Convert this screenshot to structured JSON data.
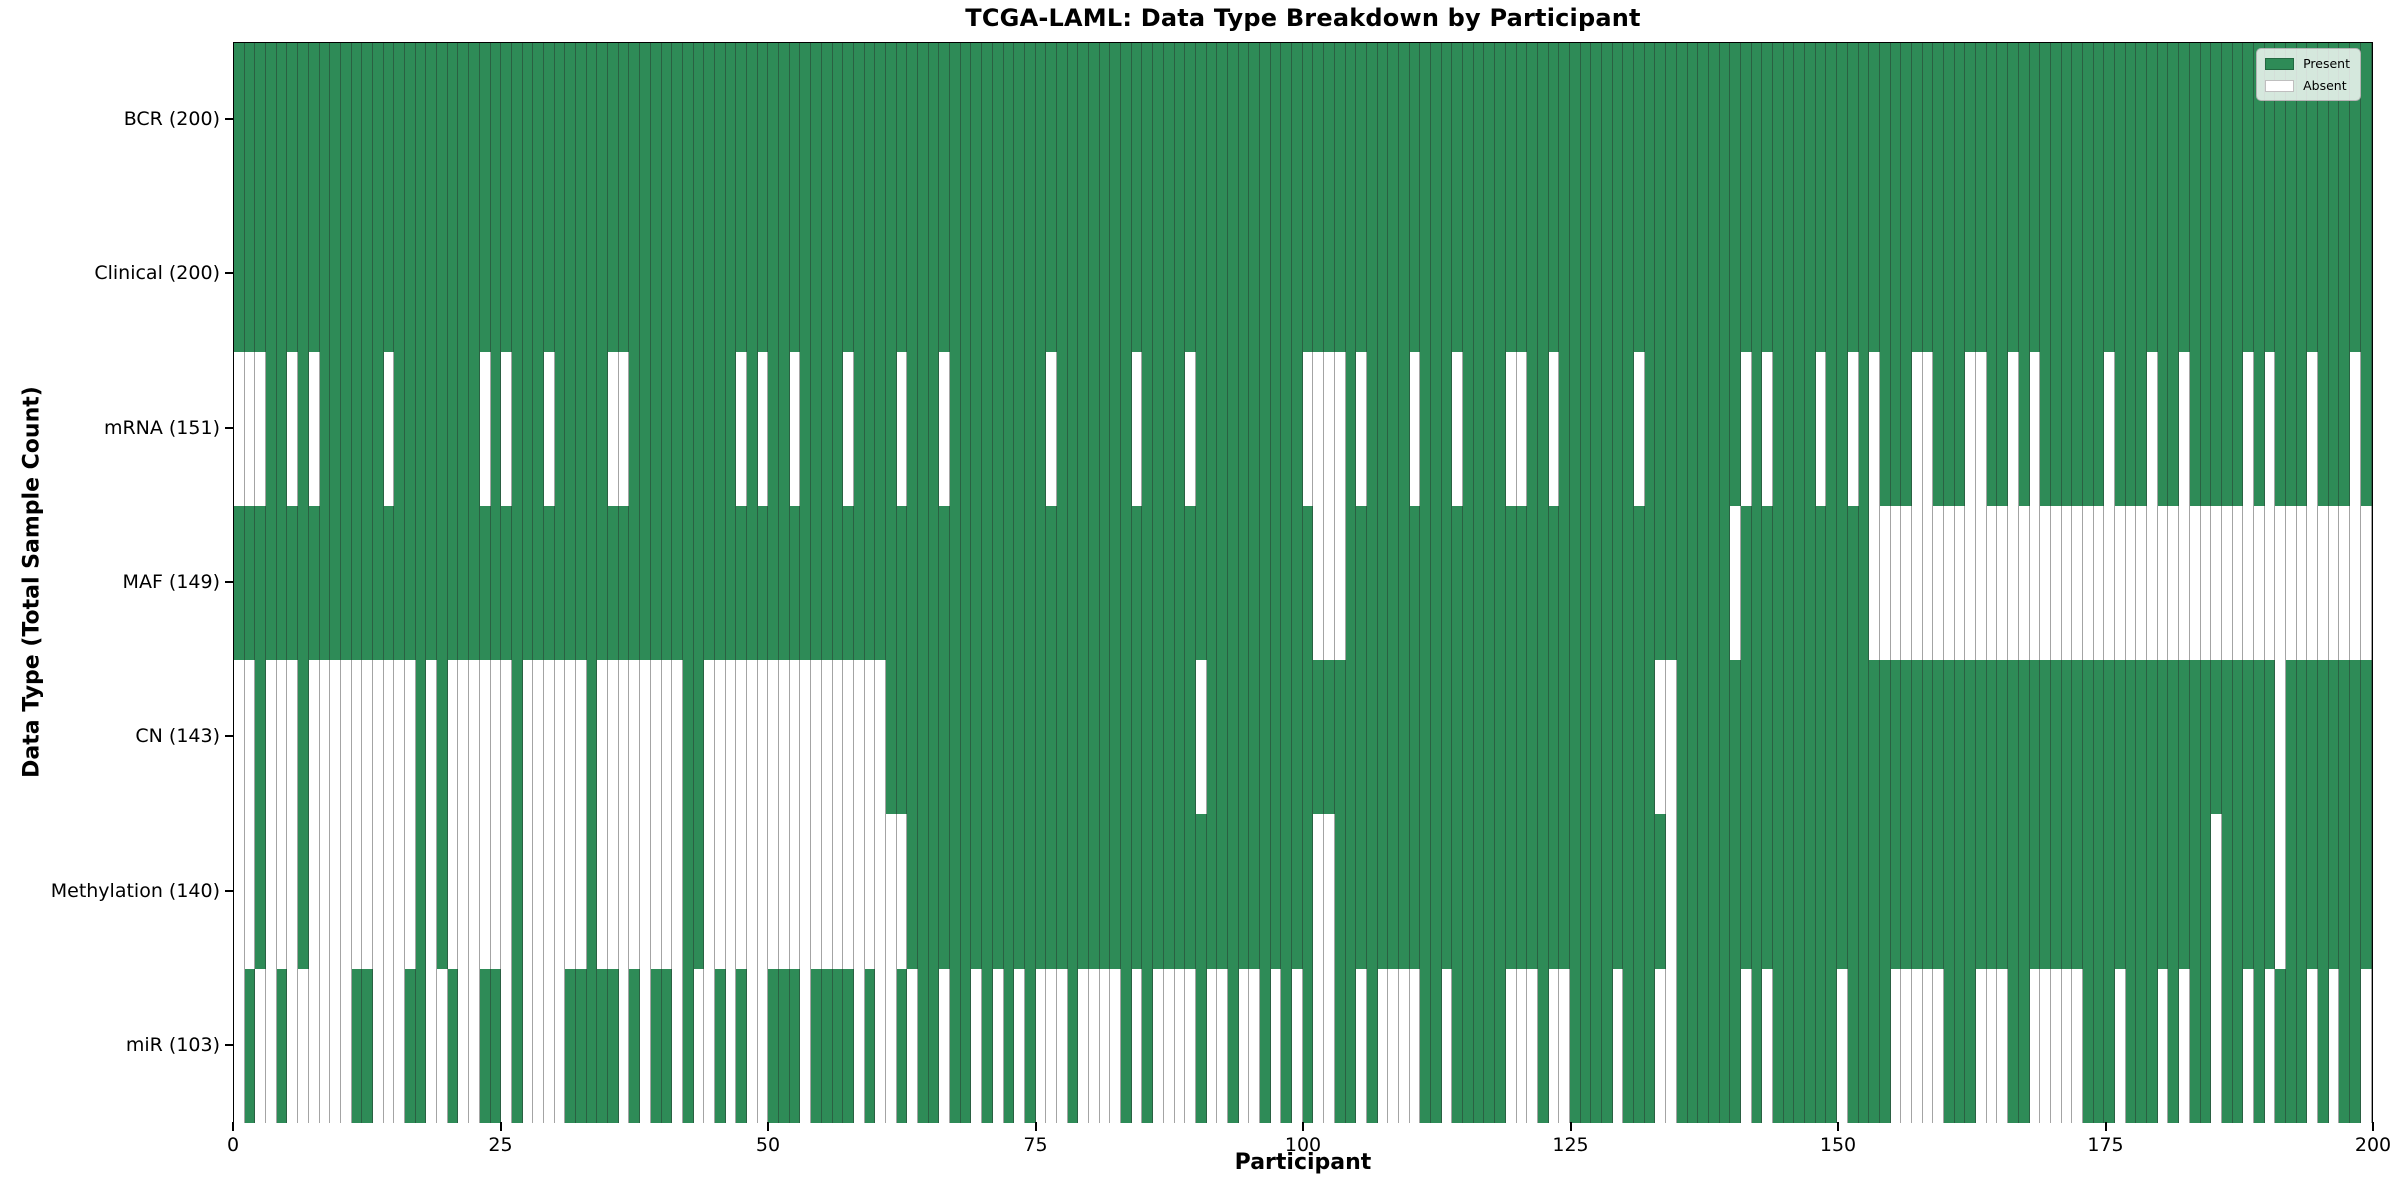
{
  "chart_data": {
    "type": "heatmap",
    "title": "TCGA-LAML: Data Type Breakdown by Participant",
    "xlabel": "Participant",
    "ylabel": "Data Type (Total Sample Count)",
    "n_participants": 200,
    "x_ticks": [
      0,
      25,
      50,
      75,
      100,
      125,
      150,
      175,
      200
    ],
    "grid_on": false,
    "legend_position": "upper right",
    "legend": [
      {
        "label": "Present",
        "color": "#2e8b57"
      },
      {
        "label": "Absent",
        "color": "#ffffff"
      }
    ],
    "colors": {
      "present": "#2e8b57",
      "absent": "#ffffff",
      "cell_edge": "rgba(38,38,38,0.42)",
      "row_border": "#1a1a1a"
    },
    "rows": [
      {
        "label": "BCR (200)",
        "name": "BCR",
        "total_present": 200,
        "absent": [],
        "absent_ranges": []
      },
      {
        "label": "Clinical (200)",
        "name": "Clinical",
        "total_present": 200,
        "absent": [],
        "absent_ranges": []
      },
      {
        "label": "mRNA (151)",
        "name": "mRNA",
        "total_present": 151,
        "absent": [
          0,
          1,
          2,
          5,
          7,
          14,
          23,
          25,
          29,
          35,
          36,
          47,
          49,
          52,
          57,
          62,
          66,
          76,
          84,
          89,
          100,
          101,
          102,
          103,
          105,
          110,
          114,
          119,
          120,
          123,
          131,
          141,
          143,
          148,
          151,
          153,
          157,
          158,
          162,
          163,
          166,
          168,
          175,
          179,
          182,
          188,
          190,
          194,
          198
        ],
        "absent_ranges": []
      },
      {
        "label": "MAF (149)",
        "name": "MAF",
        "total_present": 149,
        "absent": [
          101,
          102,
          103,
          140
        ],
        "absent_ranges": [
          [
            153,
            199
          ]
        ]
      },
      {
        "label": "CN (143)",
        "name": "CN",
        "total_present": 143,
        "absent": [
          0,
          1,
          3,
          4,
          5,
          7,
          8,
          9,
          10,
          11,
          12,
          13,
          14,
          15,
          16,
          18,
          20,
          21,
          22,
          23,
          24,
          25,
          27,
          28,
          29,
          30,
          31,
          32,
          34,
          35,
          36,
          37,
          38,
          39,
          40,
          41,
          44,
          45,
          46,
          47,
          48,
          49,
          50,
          51,
          52,
          53,
          54,
          55,
          56,
          57,
          58,
          59,
          60,
          90,
          133,
          134,
          191
        ],
        "absent_ranges": []
      },
      {
        "label": "Methylation (140)",
        "name": "Methylation",
        "total_present": 140,
        "absent": [
          0,
          1,
          3,
          4,
          5,
          7,
          8,
          9,
          10,
          11,
          12,
          13,
          14,
          15,
          16,
          18,
          20,
          21,
          22,
          23,
          24,
          25,
          27,
          28,
          29,
          30,
          31,
          32,
          34,
          35,
          36,
          37,
          38,
          39,
          40,
          41,
          44,
          45,
          46,
          47,
          48,
          49,
          50,
          51,
          52,
          53,
          54,
          55,
          56,
          57,
          58,
          59,
          60,
          61,
          62,
          101,
          102,
          134,
          185,
          191
        ],
        "absent_ranges": []
      },
      {
        "label": "miR (103)",
        "name": "miR",
        "total_present": 103,
        "absent": [
          0,
          2,
          3,
          5,
          6,
          7,
          8,
          9,
          10,
          13,
          14,
          15,
          18,
          19,
          21,
          22,
          25,
          27,
          28,
          29,
          30,
          36,
          38,
          41,
          43,
          44,
          46,
          48,
          49,
          53,
          58,
          60,
          61,
          63,
          66,
          69,
          71,
          73,
          75,
          76,
          77,
          79,
          80,
          81,
          82,
          84,
          86,
          87,
          88,
          89,
          91,
          92,
          94,
          95,
          97,
          99,
          101,
          102,
          105,
          107,
          108,
          109,
          110,
          113,
          119,
          120,
          121,
          123,
          124,
          129,
          133,
          134,
          141,
          143,
          150,
          155,
          156,
          157,
          158,
          159,
          163,
          164,
          165,
          168,
          169,
          170,
          171,
          172,
          176,
          180,
          182,
          185,
          188,
          190,
          194,
          196,
          199
        ],
        "absent_ranges": []
      }
    ]
  }
}
